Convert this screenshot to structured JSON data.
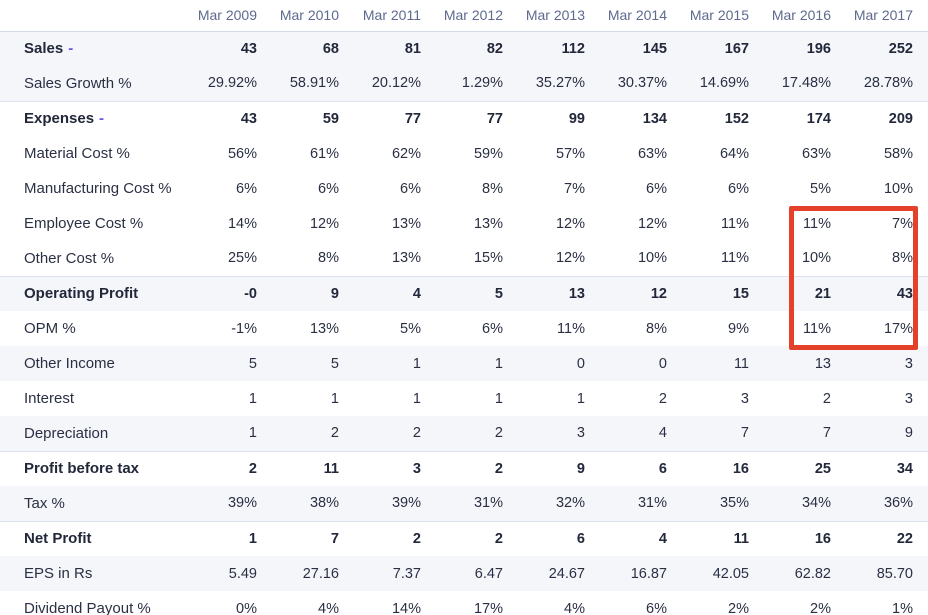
{
  "table": {
    "columns": [
      "Mar 2009",
      "Mar 2010",
      "Mar 2011",
      "Mar 2012",
      "Mar 2013",
      "Mar 2014",
      "Mar 2015",
      "Mar 2016",
      "Mar 2017"
    ],
    "rows": [
      {
        "label": "Sales",
        "toggle": "-",
        "bold": true,
        "shaded": true,
        "divider": false,
        "values": [
          "43",
          "68",
          "81",
          "82",
          "112",
          "145",
          "167",
          "196",
          "252"
        ]
      },
      {
        "label": "Sales Growth %",
        "toggle": "",
        "bold": false,
        "shaded": true,
        "divider": false,
        "values": [
          "29.92%",
          "58.91%",
          "20.12%",
          "1.29%",
          "35.27%",
          "30.37%",
          "14.69%",
          "17.48%",
          "28.78%"
        ]
      },
      {
        "label": "Expenses",
        "toggle": "-",
        "bold": true,
        "shaded": false,
        "divider": true,
        "values": [
          "43",
          "59",
          "77",
          "77",
          "99",
          "134",
          "152",
          "174",
          "209"
        ]
      },
      {
        "label": "Material Cost %",
        "toggle": "",
        "bold": false,
        "shaded": false,
        "divider": false,
        "values": [
          "56%",
          "61%",
          "62%",
          "59%",
          "57%",
          "63%",
          "64%",
          "63%",
          "58%"
        ]
      },
      {
        "label": "Manufacturing Cost %",
        "toggle": "",
        "bold": false,
        "shaded": false,
        "divider": false,
        "values": [
          "6%",
          "6%",
          "6%",
          "8%",
          "7%",
          "6%",
          "6%",
          "5%",
          "10%"
        ]
      },
      {
        "label": "Employee Cost %",
        "toggle": "",
        "bold": false,
        "shaded": false,
        "divider": false,
        "values": [
          "14%",
          "12%",
          "13%",
          "13%",
          "12%",
          "12%",
          "11%",
          "11%",
          "7%"
        ]
      },
      {
        "label": "Other Cost %",
        "toggle": "",
        "bold": false,
        "shaded": false,
        "divider": false,
        "values": [
          "25%",
          "8%",
          "13%",
          "15%",
          "12%",
          "10%",
          "11%",
          "10%",
          "8%"
        ]
      },
      {
        "label": "Operating Profit",
        "toggle": "",
        "bold": true,
        "shaded": true,
        "divider": true,
        "values": [
          "-0",
          "9",
          "4",
          "5",
          "13",
          "12",
          "15",
          "21",
          "43"
        ]
      },
      {
        "label": "OPM %",
        "toggle": "",
        "bold": false,
        "shaded": false,
        "divider": false,
        "values": [
          "-1%",
          "13%",
          "5%",
          "6%",
          "11%",
          "8%",
          "9%",
          "11%",
          "17%"
        ]
      },
      {
        "label": "Other Income",
        "toggle": "",
        "bold": false,
        "shaded": true,
        "divider": false,
        "values": [
          "5",
          "5",
          "1",
          "1",
          "0",
          "0",
          "11",
          "13",
          "3"
        ]
      },
      {
        "label": "Interest",
        "toggle": "",
        "bold": false,
        "shaded": false,
        "divider": false,
        "values": [
          "1",
          "1",
          "1",
          "1",
          "1",
          "2",
          "3",
          "2",
          "3"
        ]
      },
      {
        "label": "Depreciation",
        "toggle": "",
        "bold": false,
        "shaded": true,
        "divider": false,
        "values": [
          "1",
          "2",
          "2",
          "2",
          "3",
          "4",
          "7",
          "7",
          "9"
        ]
      },
      {
        "label": "Profit before tax",
        "toggle": "",
        "bold": true,
        "shaded": false,
        "divider": true,
        "values": [
          "2",
          "11",
          "3",
          "2",
          "9",
          "6",
          "16",
          "25",
          "34"
        ]
      },
      {
        "label": "Tax %",
        "toggle": "",
        "bold": false,
        "shaded": true,
        "divider": false,
        "values": [
          "39%",
          "38%",
          "39%",
          "31%",
          "32%",
          "31%",
          "35%",
          "34%",
          "36%"
        ]
      },
      {
        "label": "Net Profit",
        "toggle": "",
        "bold": true,
        "shaded": false,
        "divider": true,
        "values": [
          "1",
          "7",
          "2",
          "2",
          "6",
          "4",
          "11",
          "16",
          "22"
        ]
      },
      {
        "label": "EPS in Rs",
        "toggle": "",
        "bold": false,
        "shaded": true,
        "divider": false,
        "values": [
          "5.49",
          "27.16",
          "7.37",
          "6.47",
          "24.67",
          "16.87",
          "42.05",
          "62.82",
          "85.70"
        ]
      },
      {
        "label": "Dividend Payout %",
        "toggle": "",
        "bold": false,
        "shaded": false,
        "divider": false,
        "values": [
          "0%",
          "4%",
          "14%",
          "17%",
          "4%",
          "6%",
          "2%",
          "2%",
          "1%"
        ]
      }
    ]
  },
  "highlight": {
    "color": "#e5402a",
    "columns": [
      "Mar 2016",
      "Mar 2017"
    ],
    "row_span": [
      "Employee Cost %",
      "OPM %"
    ]
  },
  "colors": {
    "header_text": "#5e6a8e",
    "body_text": "#2a3043",
    "shaded_row_bg": "#f5f6fa",
    "divider": "#dde2ef",
    "toggle_accent": "#6857e6"
  }
}
